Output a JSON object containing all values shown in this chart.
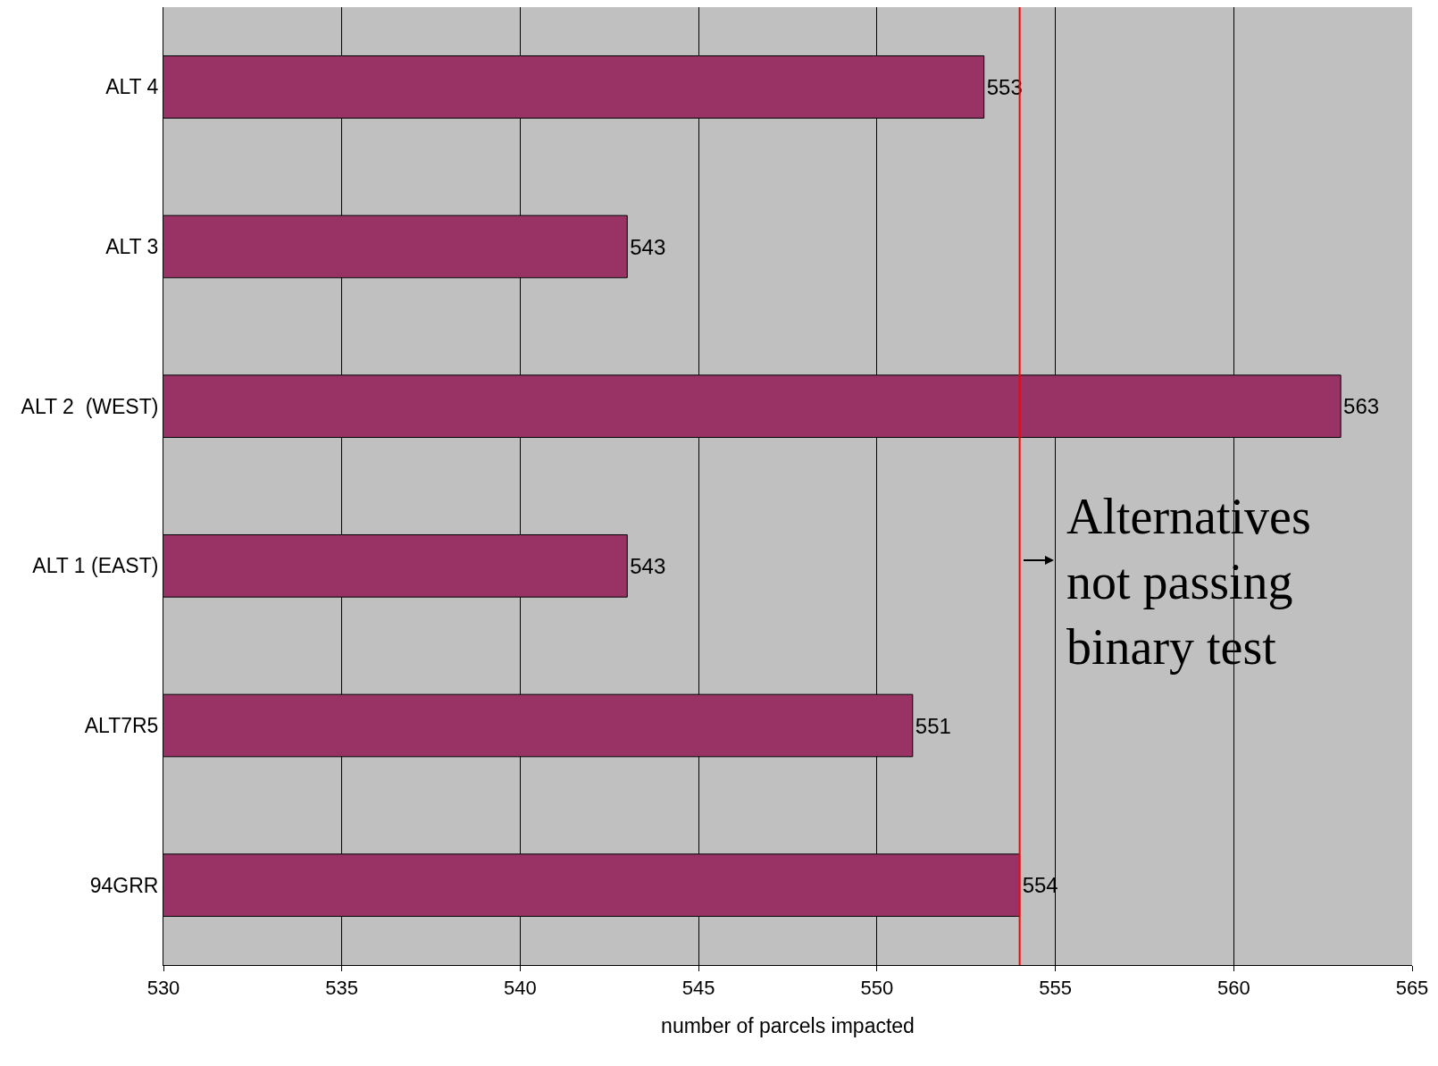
{
  "chart_data": {
    "type": "bar",
    "orientation": "horizontal",
    "xlabel": "number of parcels impacted",
    "categories": [
      "ALT 4",
      "ALT 3",
      "ALT 2  (WEST)",
      "ALT 1 (EAST)",
      "ALT7R5",
      "94GRR"
    ],
    "values": [
      553,
      543,
      563,
      543,
      551,
      554
    ],
    "color": "#993366",
    "data_labels": true,
    "xlim": [
      530,
      565
    ],
    "xticks": [
      530,
      535,
      540,
      545,
      550,
      555,
      560,
      565
    ],
    "grid": "x",
    "ref_lines": [
      {
        "axis": "x",
        "value": 554,
        "color": "#ff0000"
      }
    ],
    "annotations": [
      "Alternatives not passing binary test"
    ]
  }
}
